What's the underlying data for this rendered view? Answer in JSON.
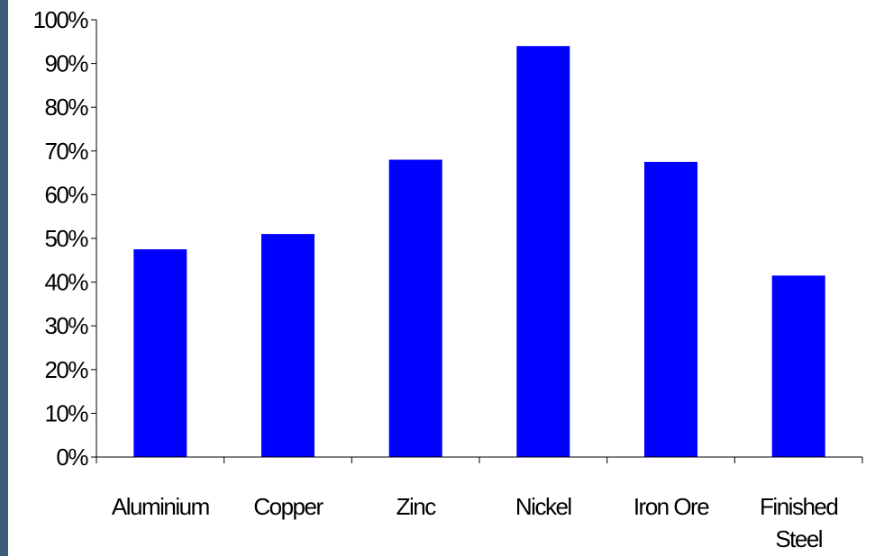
{
  "colors": {
    "bar": "#0000FF",
    "axis": "#000000",
    "left_strip": "#3E5A7A",
    "background": "#FFFFFF"
  },
  "chart_data": {
    "type": "bar",
    "categories": [
      "Aluminium",
      "Copper",
      "Zinc",
      "Nickel",
      "Iron Ore",
      "Finished Steel"
    ],
    "category_lines": [
      [
        "Aluminium"
      ],
      [
        "Copper"
      ],
      [
        "Zinc"
      ],
      [
        "Nickel"
      ],
      [
        "Iron Ore"
      ],
      [
        "Finished",
        "Steel"
      ]
    ],
    "values": [
      47.5,
      51,
      68,
      94,
      67.5,
      41.5
    ],
    "y_ticks": [
      "0%",
      "10%",
      "20%",
      "30%",
      "40%",
      "50%",
      "60%",
      "70%",
      "80%",
      "90%",
      "100%"
    ],
    "ylim": [
      0,
      100
    ],
    "title": "",
    "xlabel": "",
    "ylabel": "",
    "grid": false,
    "legend": "none"
  }
}
